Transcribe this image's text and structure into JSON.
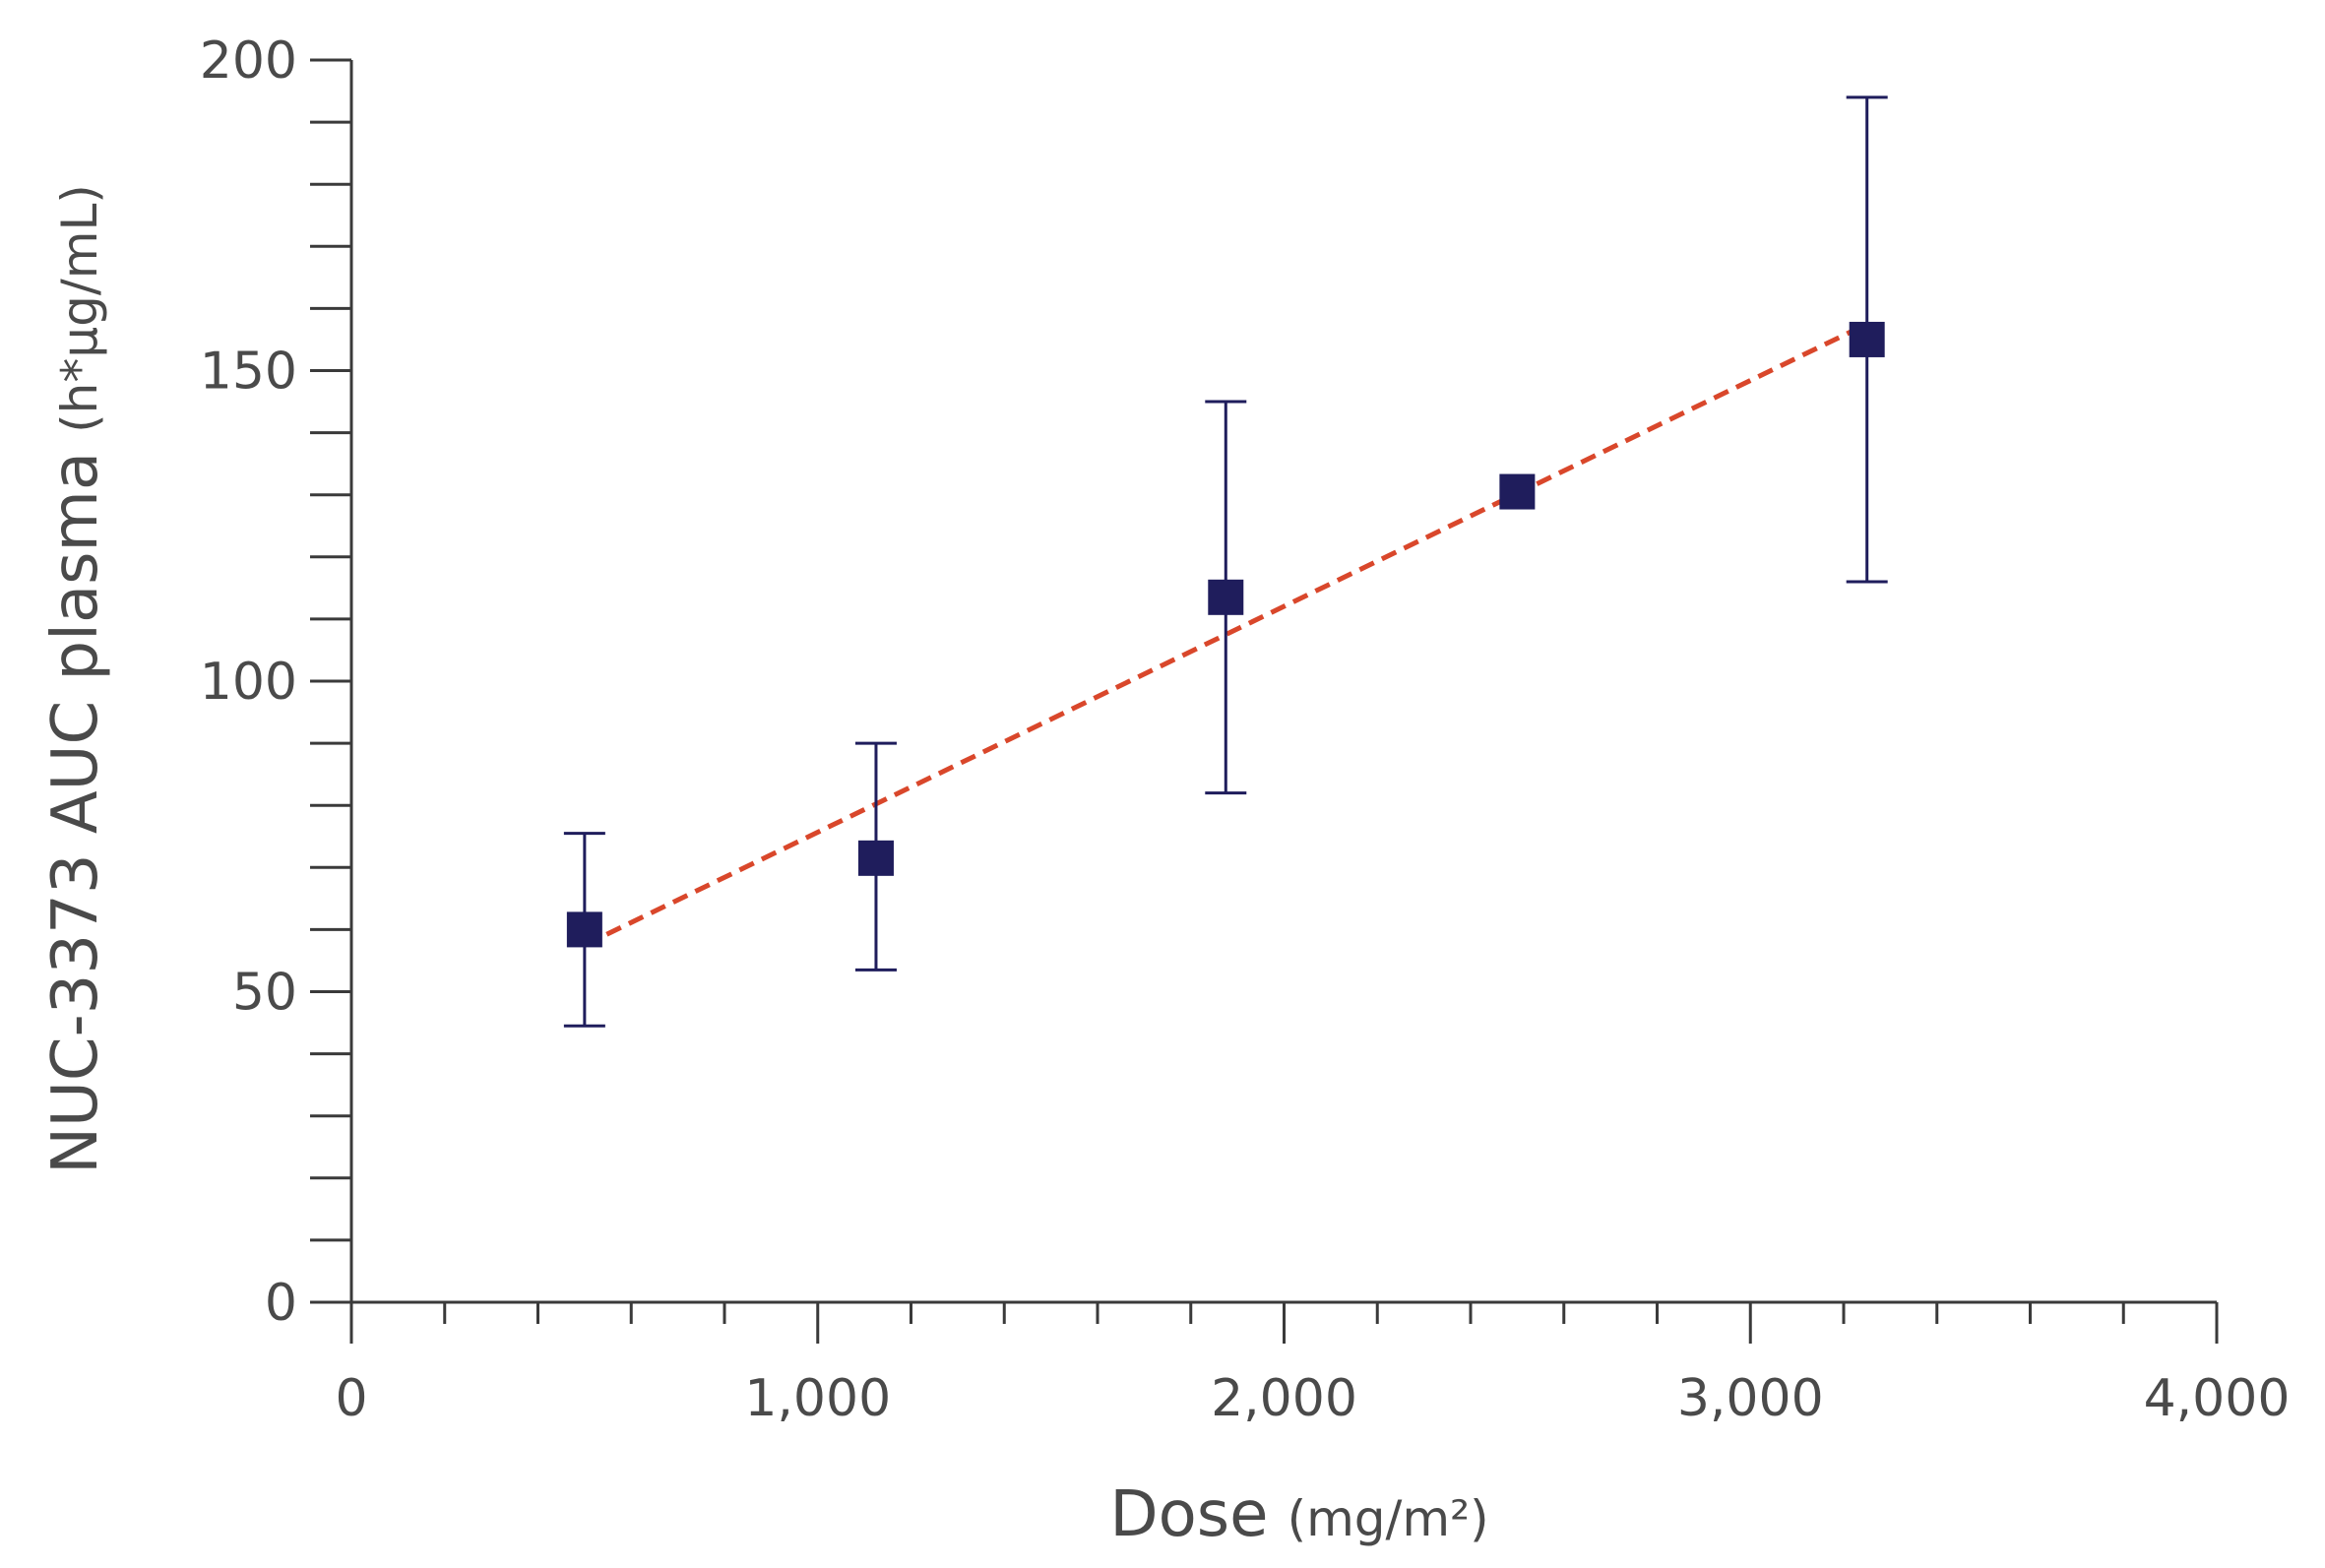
{
  "chart_data": {
    "type": "scatter",
    "title": "",
    "xlabel": "Dose",
    "xlabel_unit": "(mg/m²)",
    "ylabel": "NUC-3373 AUC plasma",
    "ylabel_unit": "(h*µg/mL)",
    "xlim": [
      0,
      4000
    ],
    "ylim": [
      0,
      200
    ],
    "x_ticks": [
      0,
      1000,
      2000,
      3000,
      4000
    ],
    "x_tick_labels": [
      "0",
      "1,000",
      "2,000",
      "3,000",
      "4,000"
    ],
    "x_minor_step": 200,
    "y_ticks": [
      0,
      50,
      100,
      150,
      200
    ],
    "y_tick_labels": [
      "0",
      "50",
      "100",
      "150",
      "200"
    ],
    "y_minor_step": 10,
    "grid": false,
    "points": [
      {
        "x": 500,
        "y": 60,
        "err_low": 44.5,
        "err_high": 75.5
      },
      {
        "x": 1125,
        "y": 71.5,
        "err_low": 53.5,
        "err_high": 90
      },
      {
        "x": 1875,
        "y": 113.5,
        "err_low": 82,
        "err_high": 145
      },
      {
        "x": 2500,
        "y": 130.5
      },
      {
        "x": 3250,
        "y": 155,
        "err_low": 116,
        "err_high": 194
      }
    ],
    "trendline": {
      "style": "dashed",
      "x": [
        500,
        3250
      ],
      "y": [
        57.5,
        157.5
      ]
    },
    "colors": {
      "marker": "#1f1d5c",
      "trendline": "#d9472b",
      "axis": "#3a3a3a",
      "text": "#4a4a4a"
    }
  }
}
